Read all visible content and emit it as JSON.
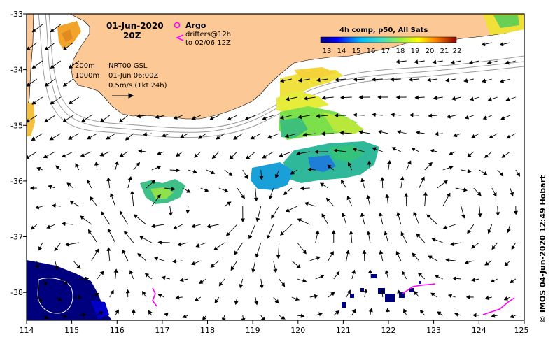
{
  "map": {
    "lon_range": [
      114,
      125
    ],
    "lat_range": [
      -38.5,
      -33
    ],
    "x_tick_labels": [
      "114",
      "115",
      "116",
      "117",
      "118",
      "119",
      "120",
      "121",
      "122",
      "123",
      "124",
      "125"
    ],
    "y_tick_labels": [
      "-33",
      "-34",
      "-35",
      "-36",
      "-37",
      "-38"
    ],
    "land_color": "#fcc896",
    "arrow_color": "#000000",
    "drifter_color": "#ff00ff"
  },
  "annotations": {
    "date": "01-Jun-2020",
    "hour": "20Z",
    "argo_label": "Argo",
    "drifters_label": "drifters@12h",
    "drifters_to": "to 02/06 12Z",
    "depth_200": "200m",
    "depth_1000": "1000m",
    "nrt": "NRT00 GSL",
    "nrt_time": "01-Jun 06:00Z",
    "scale": "0.5m/s (1kt 24h)",
    "credit": "© IMOS 04-Jun-2020 12:49 Hobart"
  },
  "colorbar": {
    "title": "4h comp, p50, All Sats",
    "labels": [
      "13",
      "14",
      "15",
      "16",
      "17",
      "18",
      "19",
      "20",
      "21",
      "22"
    ]
  }
}
